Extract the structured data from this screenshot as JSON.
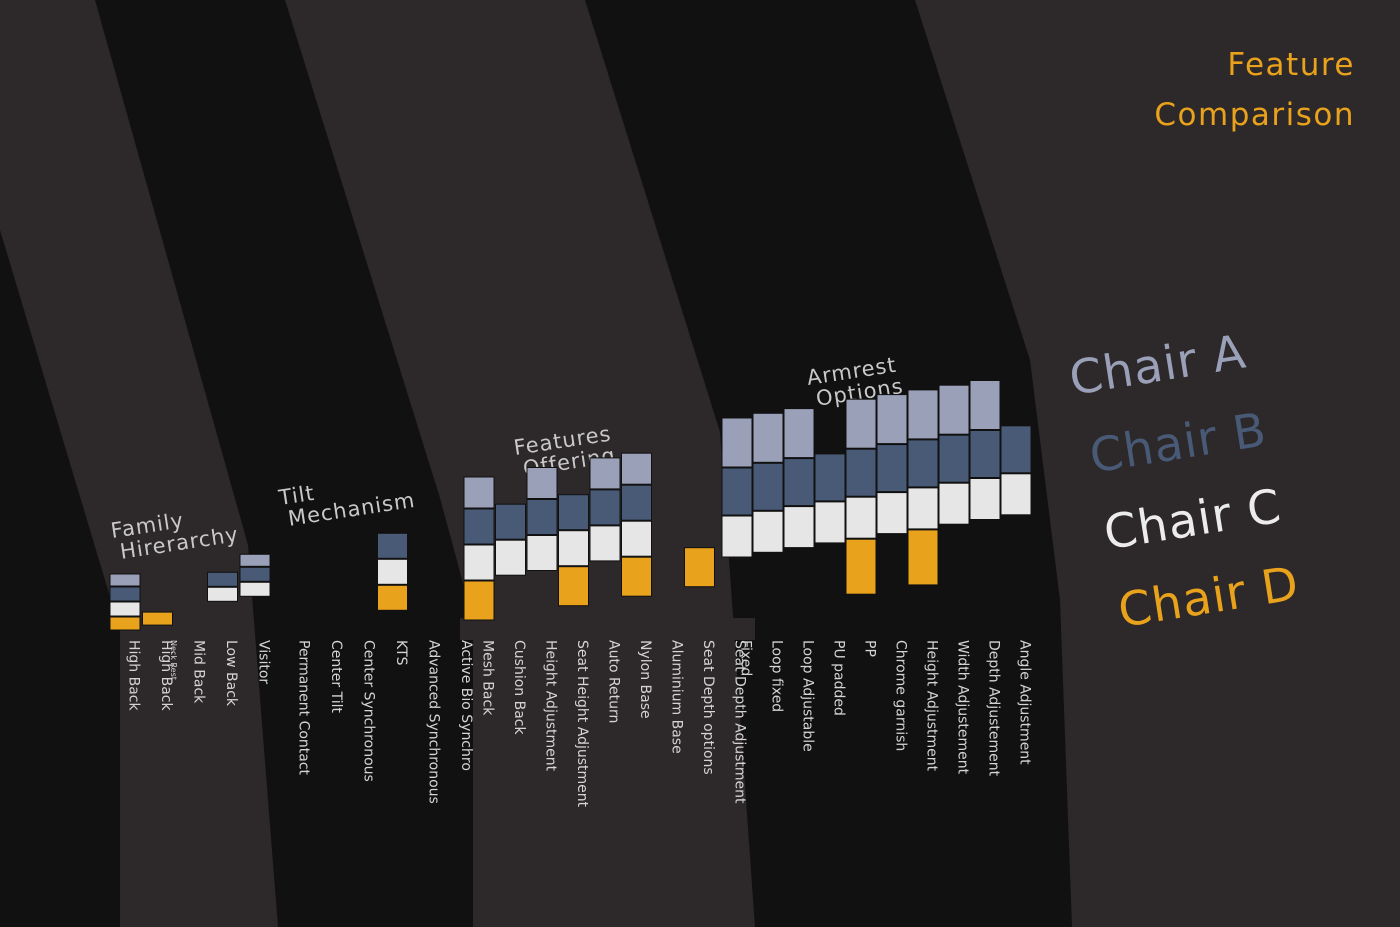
{
  "title": [
    "Feature",
    "Comparison"
  ],
  "colors": {
    "background": "#111111",
    "band": "#2d2829",
    "chair_a": "#9aa0b8",
    "chair_b": "#485a76",
    "chair_c": "#e6e6e6",
    "chair_d": "#e9a21c",
    "title": "#e9a21c",
    "label": "#d4d4d4",
    "group_title": "#c9c9c9"
  },
  "legend": [
    {
      "name": "Chair A",
      "color": "#9aa0b8"
    },
    {
      "name": "Chair B",
      "color": "#485a76"
    },
    {
      "name": "Chair C",
      "color": "#ececec"
    },
    {
      "name": "Chair D",
      "color": "#e9a21c"
    }
  ],
  "chart_data": {
    "type": "heatmap",
    "series_order": [
      "Chair A",
      "Chair B",
      "Chair C",
      "Chair D"
    ],
    "groups": [
      {
        "name": [
          "Family",
          "Hirerarchy"
        ],
        "features": [
          {
            "label": "High Back",
            "sub": "",
            "has": [
              1,
              1,
              1,
              1
            ]
          },
          {
            "label": "High Back",
            "sub": "Neck Rest",
            "has": [
              0,
              0,
              0,
              1
            ]
          },
          {
            "label": "Mid Back",
            "sub": "",
            "has": [
              0,
              0,
              0,
              0
            ]
          },
          {
            "label": "Low Back",
            "sub": "",
            "has": [
              0,
              1,
              1,
              0
            ]
          },
          {
            "label": "Visitor",
            "sub": "",
            "has": [
              1,
              1,
              1,
              0
            ]
          }
        ]
      },
      {
        "name": [
          "Tilt",
          "Mechanism"
        ],
        "features": [
          {
            "label": "Permanent Contact",
            "sub": "",
            "has": [
              0,
              0,
              0,
              0
            ]
          },
          {
            "label": "Center Tilt",
            "sub": "",
            "has": [
              0,
              0,
              0,
              0
            ]
          },
          {
            "label": "Center Synchronous",
            "sub": "",
            "has": [
              0,
              0,
              0,
              0
            ]
          },
          {
            "label": "KTS",
            "sub": "",
            "has": [
              0,
              1,
              1,
              1
            ]
          },
          {
            "label": "Advanced Synchronous",
            "sub": "",
            "has": [
              0,
              0,
              0,
              0
            ]
          },
          {
            "label": "Active Bio Synchro",
            "sub": "",
            "has": [
              0,
              0,
              0,
              0
            ]
          }
        ]
      },
      {
        "name": [
          "Features",
          "Offering"
        ],
        "features": [
          {
            "label": "Mesh Back",
            "sub": "",
            "has": [
              1,
              1,
              1,
              1
            ]
          },
          {
            "label": "Cushion Back",
            "sub": "",
            "has": [
              0,
              1,
              1,
              0
            ]
          },
          {
            "label": "Height Adjustment",
            "sub": "",
            "has": [
              1,
              1,
              1,
              0
            ]
          },
          {
            "label": "Seat Height Adjustment",
            "sub": "",
            "has": [
              0,
              1,
              1,
              1
            ]
          },
          {
            "label": "Auto Return",
            "sub": "",
            "has": [
              1,
              1,
              1,
              0
            ]
          },
          {
            "label": "Nylon Base",
            "sub": "",
            "has": [
              1,
              1,
              1,
              1
            ]
          },
          {
            "label": "Aluminium Base",
            "sub": "",
            "has": [
              0,
              0,
              0,
              0
            ]
          },
          {
            "label": "Seat Depth options",
            "sub": "",
            "has": [
              0,
              0,
              0,
              1
            ]
          },
          {
            "label": "Seat Depth Adjustment",
            "sub": "",
            "has": [
              0,
              0,
              0,
              0
            ]
          }
        ]
      },
      {
        "name": [
          "Armrest",
          "Options"
        ],
        "features": [
          {
            "label": "Fixed",
            "sub": "",
            "has": [
              1,
              1,
              1,
              0
            ]
          },
          {
            "label": "Loop fixed",
            "sub": "",
            "has": [
              1,
              1,
              1,
              0
            ]
          },
          {
            "label": "Loop Adjustable",
            "sub": "",
            "has": [
              1,
              1,
              1,
              0
            ]
          },
          {
            "label": "PU padded",
            "sub": "",
            "has": [
              0,
              1,
              1,
              0
            ]
          },
          {
            "label": "PP",
            "sub": "",
            "has": [
              1,
              1,
              1,
              1
            ]
          },
          {
            "label": "Chrome garnish",
            "sub": "",
            "has": [
              1,
              1,
              1,
              0
            ]
          },
          {
            "label": "Height Adjustment",
            "sub": "",
            "has": [
              1,
              1,
              1,
              1
            ]
          },
          {
            "label": "Width  Adjustement",
            "sub": "",
            "has": [
              1,
              1,
              1,
              0
            ]
          },
          {
            "label": "Depth  Adjustement",
            "sub": "",
            "has": [
              1,
              1,
              1,
              0
            ]
          },
          {
            "label": "Angle Adjustment",
            "sub": "",
            "has": [
              0,
              1,
              1,
              0
            ]
          }
        ]
      }
    ]
  }
}
